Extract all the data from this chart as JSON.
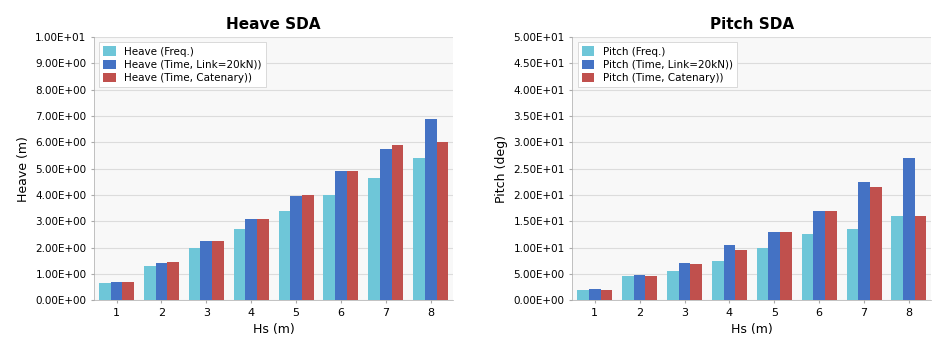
{
  "heave_title": "Heave SDA",
  "pitch_title": "Pitch SDA",
  "x_label": "Hs (m)",
  "heave_ylabel": "Heave (m)",
  "pitch_ylabel": "Pitch (deg)",
  "hs_values": [
    1,
    2,
    3,
    4,
    5,
    6,
    7,
    8
  ],
  "heave_freq": [
    0.65,
    1.3,
    2.0,
    2.7,
    3.4,
    4.0,
    4.65,
    5.4
  ],
  "heave_time_link": [
    0.7,
    1.4,
    2.25,
    3.1,
    3.95,
    4.9,
    5.75,
    6.9
  ],
  "heave_time_cat": [
    0.68,
    1.45,
    2.25,
    3.1,
    4.0,
    4.9,
    5.9,
    6.0
  ],
  "pitch_freq": [
    2.0,
    4.5,
    5.5,
    7.5,
    10.0,
    12.5,
    13.5,
    16.0
  ],
  "pitch_time_link": [
    2.2,
    4.8,
    7.0,
    10.5,
    13.0,
    17.0,
    22.5,
    27.0
  ],
  "pitch_time_cat": [
    2.0,
    4.5,
    6.8,
    9.5,
    13.0,
    17.0,
    21.5,
    16.0
  ],
  "color_freq": "#6EC6D8",
  "color_time_link": "#4472C4",
  "color_time_cat": "#C0504D",
  "heave_ylim": [
    0,
    10
  ],
  "heave_yticks": [
    0,
    1,
    2,
    3,
    4,
    5,
    6,
    7,
    8,
    9,
    10
  ],
  "pitch_ylim": [
    0,
    50
  ],
  "pitch_yticks": [
    0,
    5,
    10,
    15,
    20,
    25,
    30,
    35,
    40,
    45,
    50
  ],
  "legend_heave": [
    "Heave (Freq.)",
    "Heave (Time, Link=20kN))",
    "Heave (Time, Catenary))"
  ],
  "legend_pitch": [
    "Pitch (Freq.)",
    "Pitch (Time, Link=20kN))",
    "Pitch (Time, Catenary))"
  ],
  "background_color": "#FFFFFF",
  "plot_bg_color": "#F8F8F8",
  "grid_color": "#DCDCDC",
  "bar_width": 0.26
}
